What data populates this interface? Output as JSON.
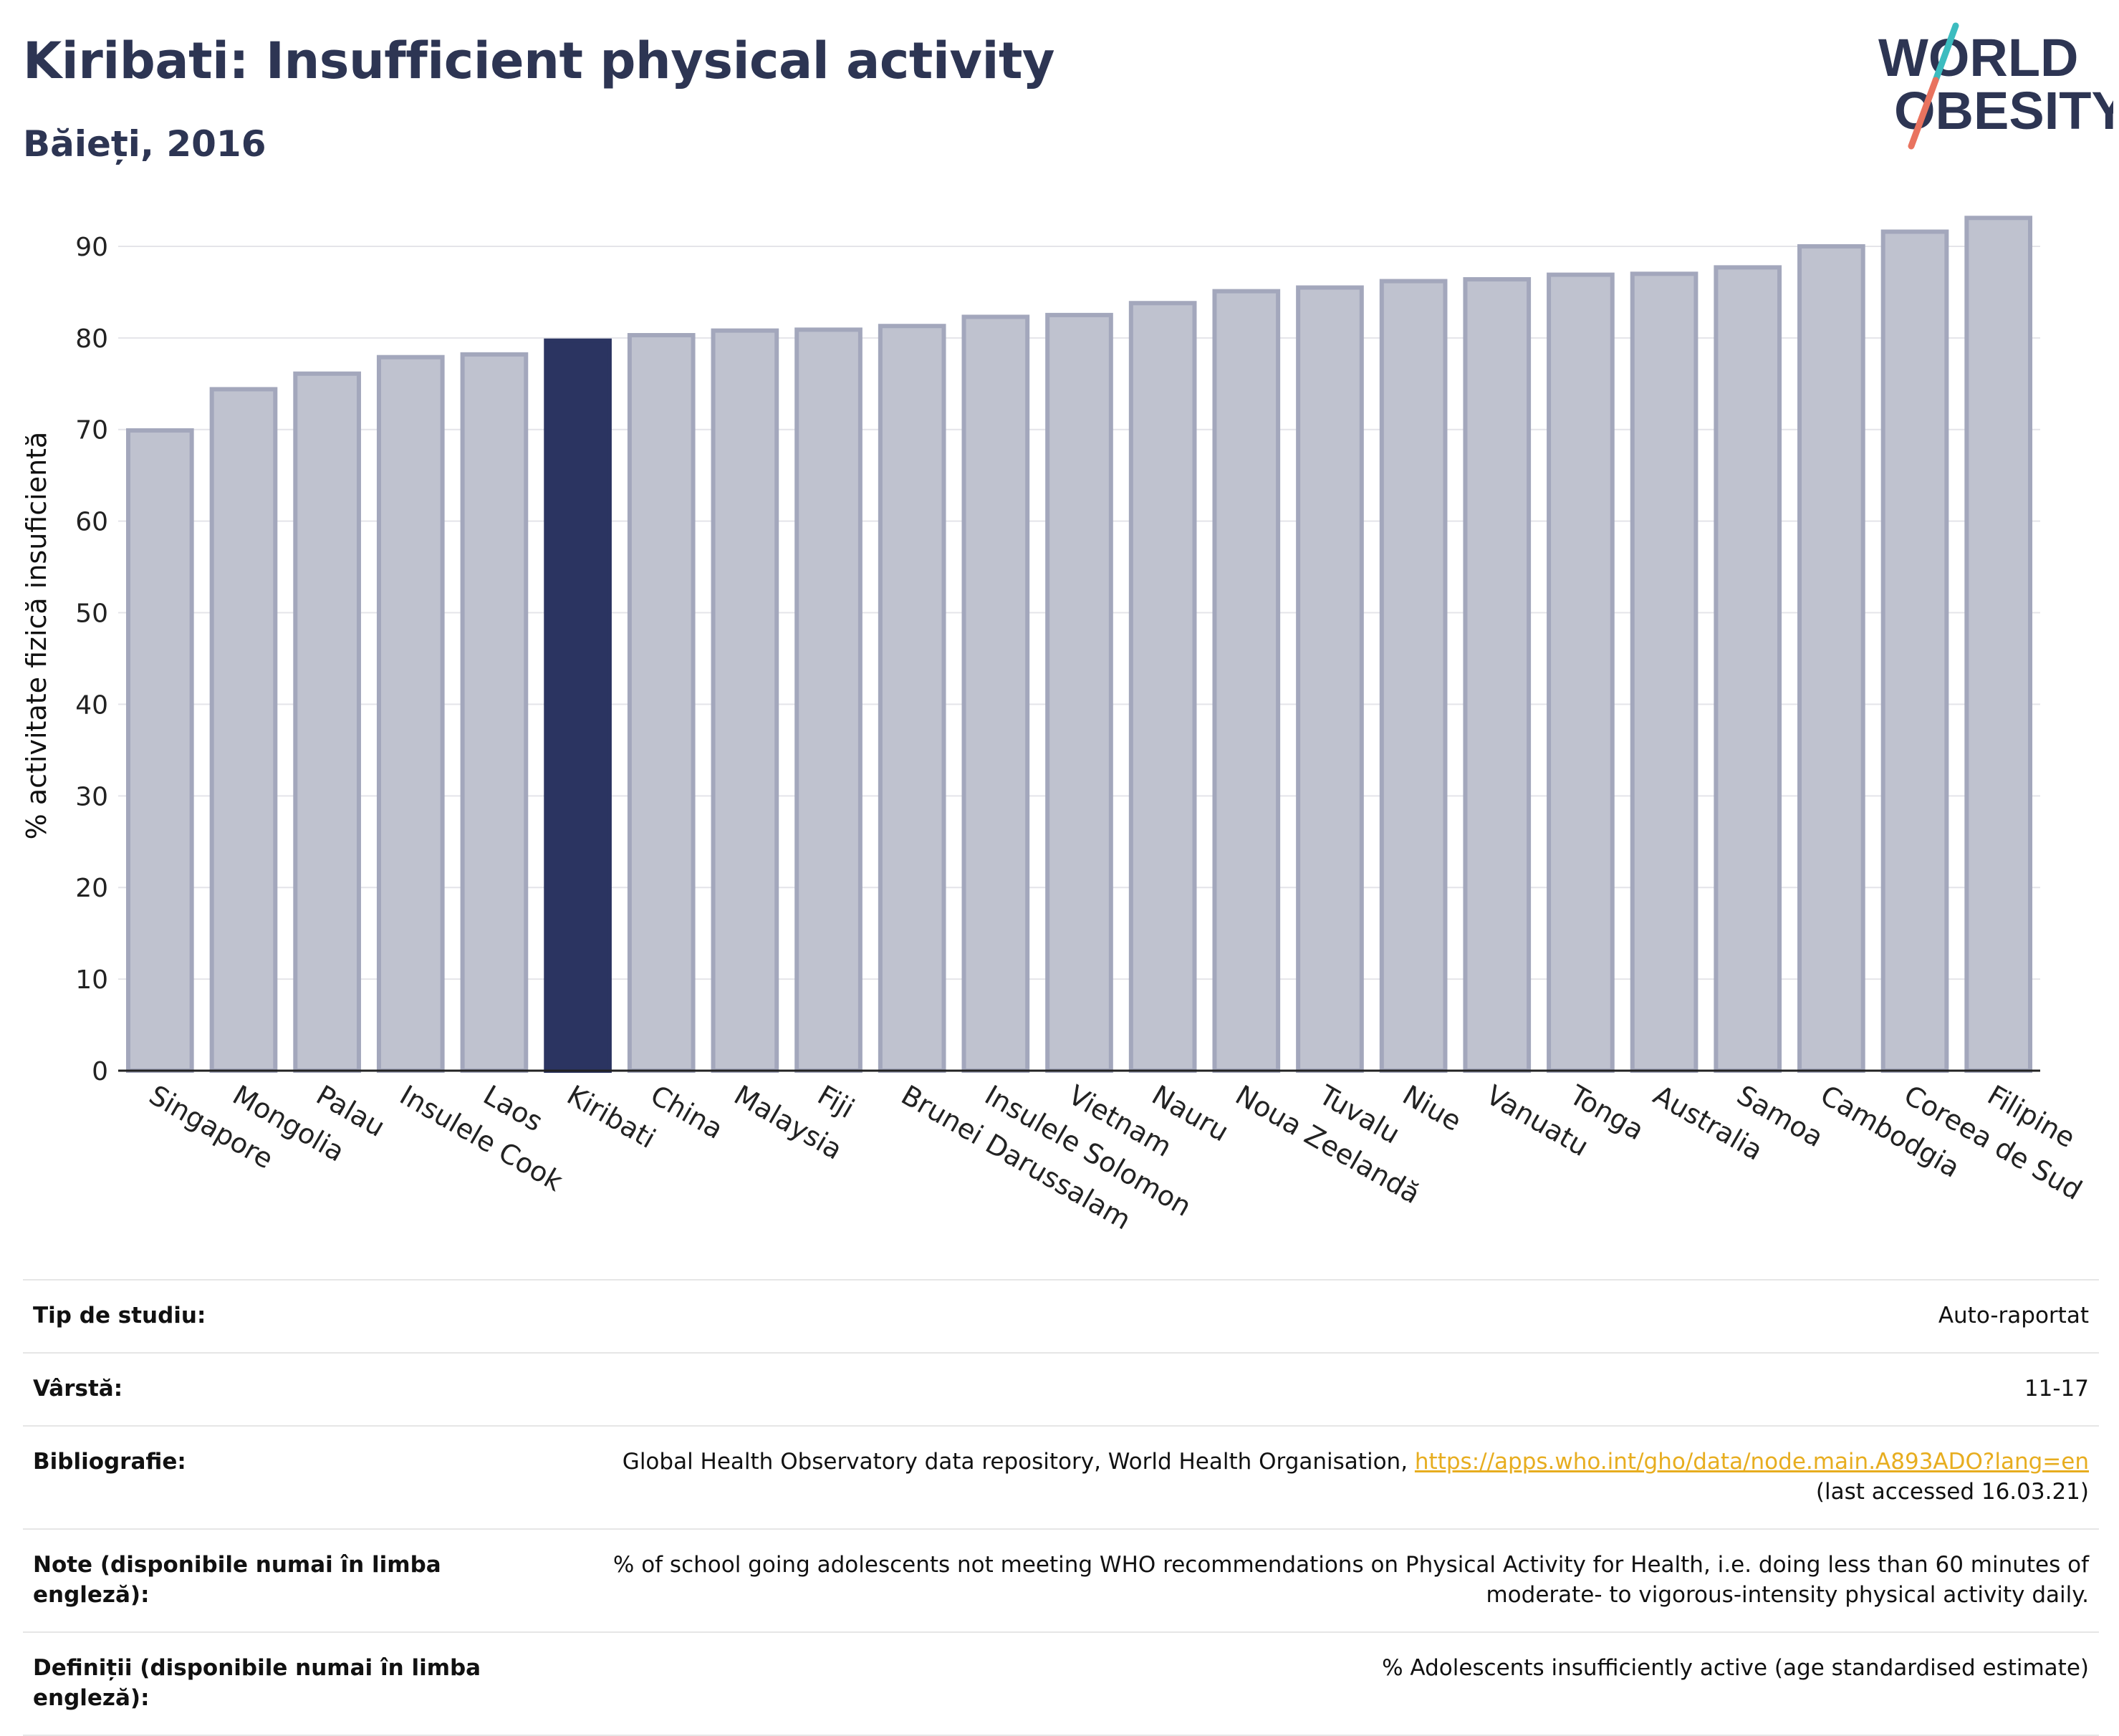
{
  "header": {
    "title": "Kiribati: Insufficient physical activity",
    "subtitle": "Băieți, 2016"
  },
  "logo": {
    "line1": "WORLD",
    "line2": "OBESITY"
  },
  "colors": {
    "highlight": "#2b3461",
    "bar_fill": "#bfc2cf",
    "bar_stroke": "#a3a7bc",
    "heading": "#2d3553",
    "logo_teal": "#3cbcbf",
    "logo_coral": "#e9735f",
    "link": "#e7ad1f"
  },
  "chart_data": {
    "type": "bar",
    "ylabel": "% activitate fizică insuficientă",
    "ylim": [
      0,
      95
    ],
    "yticks": [
      0,
      10,
      20,
      30,
      40,
      50,
      60,
      70,
      80,
      90
    ],
    "grid": true,
    "highlight": "Kiribati",
    "categories": [
      "Singapore",
      "Mongolia",
      "Palau",
      "Insulele Cook",
      "Laos",
      "Kiribati",
      "China",
      "Malaysia",
      "Fiji",
      "Brunei Darussalam",
      "Insulele Solomon",
      "Vietnam",
      "Nauru",
      "Noua Zeelandă",
      "Tuvalu",
      "Niue",
      "Vanuatu",
      "Tonga",
      "Australia",
      "Samoa",
      "Cambodgia",
      "Coreea de Sud",
      "Filipine"
    ],
    "values": [
      69.9,
      74.4,
      76.1,
      77.9,
      78.2,
      79.7,
      80.3,
      80.8,
      80.9,
      81.3,
      82.3,
      82.5,
      83.8,
      85.1,
      85.5,
      86.2,
      86.4,
      86.9,
      87.0,
      87.7,
      90.0,
      91.6,
      93.1
    ]
  },
  "meta": {
    "rows": [
      {
        "label": "Tip de studiu:",
        "value": "Auto-raportat"
      },
      {
        "label": "Vârstă:",
        "value": "11-17"
      },
      {
        "label": "Bibliografie:",
        "value": "Global Health Observatory data repository, World Health Organisation, ",
        "link": "https://apps.who.int/gho/data/node.main.A893ADO?lang=en",
        "note": "(last accessed 16.03.21)"
      },
      {
        "label": "Note (disponibile numai în limba engleză):",
        "value": "% of school going adolescents not meeting WHO recommendations on Physical Activity for Health, i.e. doing less than 60 minutes of moderate- to vigorous-intensity physical activity daily."
      },
      {
        "label": "Definiții (disponibile numai în limba engleză):",
        "value": "% Adolescents insufficiently active (age standardised estimate)"
      }
    ]
  }
}
